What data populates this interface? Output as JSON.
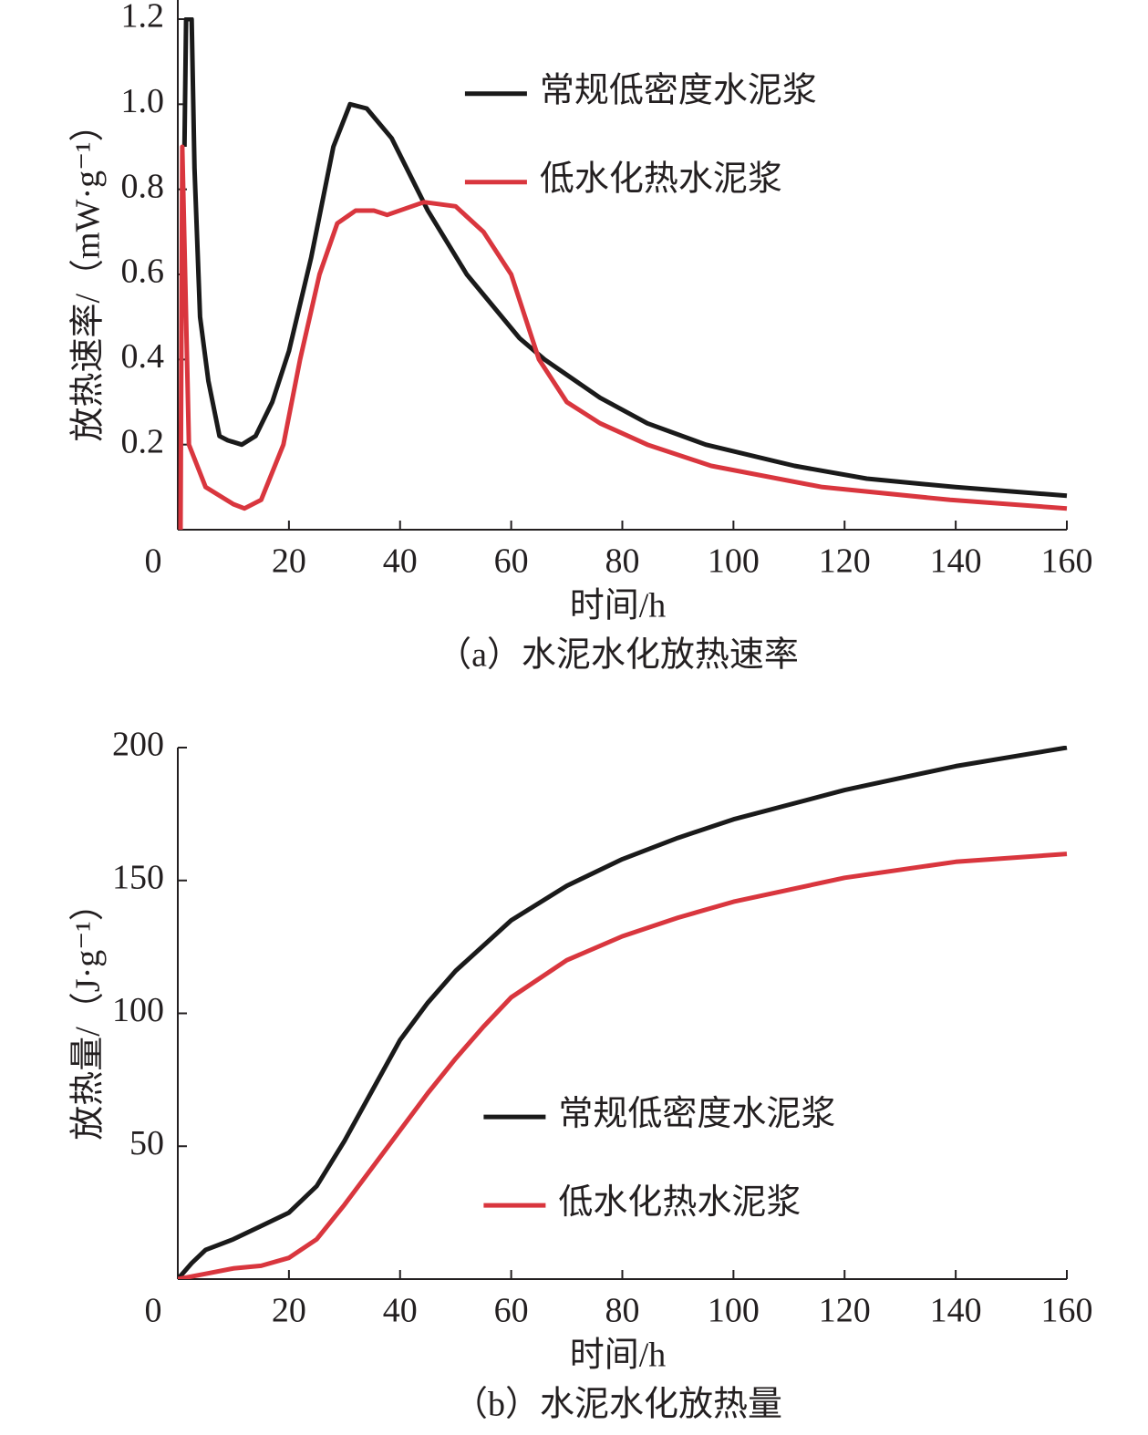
{
  "chart_data": [
    {
      "type": "line",
      "caption": "（a）水泥水化放热速率",
      "xlabel": "时间/h",
      "ylabel": "放热速率/（mW·g⁻¹）",
      "xlim": [
        0,
        160
      ],
      "xticks": [
        0,
        20,
        40,
        60,
        80,
        100,
        120,
        140,
        160
      ],
      "ylim": [
        0,
        1.2
      ],
      "yticks": [
        0.2,
        0.4,
        0.6,
        0.8,
        {
          "value": 1,
          "label": "1.0"
        },
        1.2
      ],
      "legend": "upper right",
      "series": [
        {
          "name": "常规低密度水泥浆",
          "color": "#1a1a1a",
          "x": [
            1.2,
            1.5,
            2.5,
            3,
            4,
            5.5,
            7.5,
            9,
            11.5,
            14,
            17,
            20,
            24,
            28,
            31,
            34,
            38.5,
            45,
            52,
            61.5,
            66,
            76,
            84.5,
            95,
            111,
            124,
            140,
            160
          ],
          "values": [
            0.9,
            1.2,
            1.2,
            0.85,
            0.5,
            0.35,
            0.22,
            0.21,
            0.2,
            0.22,
            0.3,
            0.42,
            0.64,
            0.9,
            1.0,
            0.99,
            0.92,
            0.75,
            0.6,
            0.45,
            0.4,
            0.31,
            0.25,
            0.2,
            0.15,
            0.12,
            0.1,
            0.08
          ]
        },
        {
          "name": "低水化热水泥浆",
          "color": "#d9363e",
          "x": [
            0.5,
            0.8,
            2,
            5,
            10,
            12,
            15,
            19,
            22,
            25.5,
            28.7,
            32,
            35.3,
            37.7,
            44.3,
            50,
            55,
            60,
            65,
            70,
            76,
            84.5,
            96,
            116,
            139,
            160
          ],
          "values": [
            0,
            0.9,
            0.2,
            0.1,
            0.06,
            0.05,
            0.07,
            0.2,
            0.4,
            0.6,
            0.72,
            0.75,
            0.75,
            0.74,
            0.77,
            0.76,
            0.7,
            0.6,
            0.4,
            0.3,
            0.25,
            0.2,
            0.15,
            0.1,
            0.07,
            0.05
          ]
        }
      ]
    },
    {
      "type": "line",
      "caption": "（b）水泥水化放热量",
      "xlabel": "时间/h",
      "ylabel": "放热量/（J·g⁻¹）",
      "xlim": [
        0,
        160
      ],
      "xticks": [
        0,
        20,
        40,
        60,
        80,
        100,
        120,
        140,
        160
      ],
      "ylim": [
        0,
        200
      ],
      "yticks": [
        50,
        100,
        150,
        200
      ],
      "legend": "lower right",
      "series": [
        {
          "name": "常规低密度水泥浆",
          "color": "#1a1a1a",
          "x": [
            0,
            2.5,
            5,
            10,
            15,
            20,
            25,
            30,
            35,
            40,
            45,
            50,
            60,
            70,
            80,
            90,
            100,
            120,
            140,
            160
          ],
          "values": [
            0,
            6,
            11,
            15,
            20,
            25,
            35,
            52,
            71,
            90,
            104,
            116,
            135,
            148,
            158,
            166,
            173,
            184,
            193,
            200
          ]
        },
        {
          "name": "低水化热水泥浆",
          "color": "#d9363e",
          "x": [
            0,
            5,
            10,
            15,
            20,
            25,
            30,
            35,
            40,
            45,
            50,
            55,
            60,
            70,
            80,
            90,
            100,
            120,
            140,
            160
          ],
          "values": [
            0,
            2,
            4,
            5,
            8,
            15,
            28,
            42,
            56,
            70,
            83,
            95,
            106,
            120,
            129,
            136,
            142,
            151,
            157,
            160
          ]
        }
      ]
    }
  ]
}
